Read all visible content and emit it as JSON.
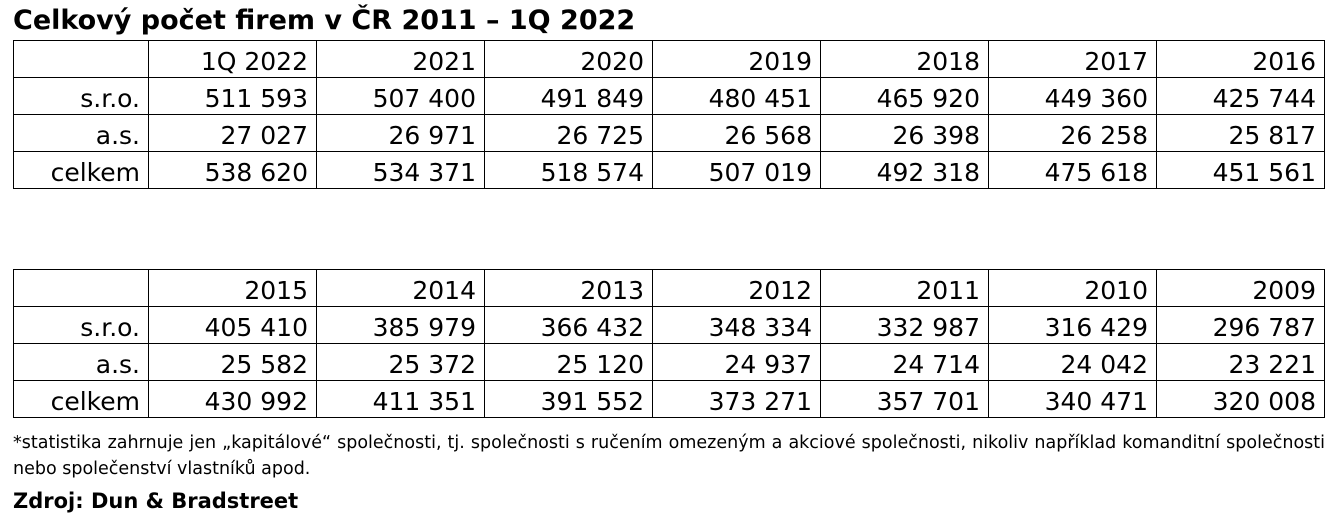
{
  "title": "Celkový počet firem v ČR 2011 – 1Q 2022",
  "table1": {
    "headers": [
      "",
      "1Q 2022",
      "2021",
      "2020",
      "2019",
      "2018",
      "2017",
      "2016"
    ],
    "rows": [
      {
        "label": "s.r.o.",
        "values": [
          "511 593",
          "507 400",
          "491 849",
          "480 451",
          "465 920",
          "449 360",
          "425 744"
        ]
      },
      {
        "label": "a.s.",
        "values": [
          "27 027",
          "26 971",
          "26 725",
          "26 568",
          "26 398",
          "26 258",
          "25 817"
        ]
      },
      {
        "label": "celkem",
        "values": [
          "538 620",
          "534 371",
          "518 574",
          "507 019",
          "492 318",
          "475 618",
          "451 561"
        ]
      }
    ]
  },
  "table2": {
    "headers": [
      "",
      "2015",
      "2014",
      "2013",
      "2012",
      "2011",
      "2010",
      "2009"
    ],
    "rows": [
      {
        "label": "s.r.o.",
        "values": [
          "405 410",
          "385 979",
          "366 432",
          "348 334",
          "332 987",
          "316 429",
          "296 787"
        ]
      },
      {
        "label": "a.s.",
        "values": [
          "25 582",
          "25 372",
          "25 120",
          "24 937",
          "24 714",
          "24 042",
          "23 221"
        ]
      },
      {
        "label": "celkem",
        "values": [
          "430 992",
          "411 351",
          "391 552",
          "373 271",
          "357 701",
          "340 471",
          "320 008"
        ]
      }
    ]
  },
  "footnote": "*statistika zahrnuje jen „kapitálové“ společnosti, tj. společnosti s ručením omezeným a akciové společnosti, nikoliv například komanditní společnosti nebo společenství vlastníků apod.",
  "source": "Zdroj: Dun & Bradstreet"
}
